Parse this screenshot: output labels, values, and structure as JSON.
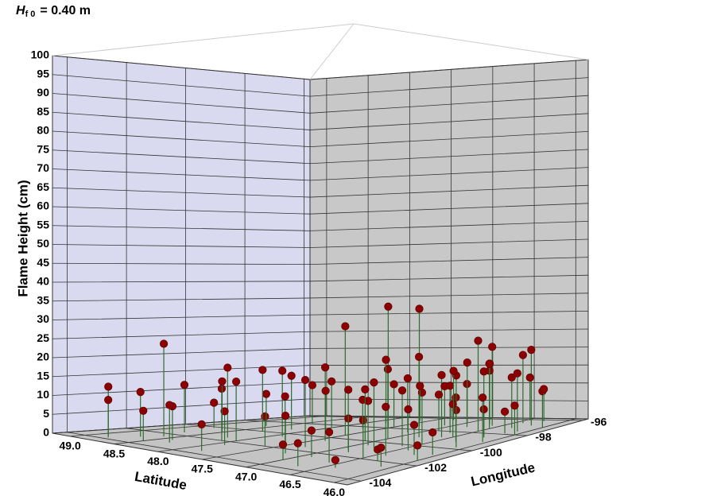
{
  "chart_data": {
    "type": "scatter3d",
    "title": "H",
    "title_subscript": "f 0",
    "title_rest": "= 0.40 m",
    "y_label": "Flame Height (cm)",
    "x_label": "Latitude",
    "z_label": "Longitude",
    "xlim": [
      49.2,
      45.85
    ],
    "zlim": [
      -104.5,
      -95.8
    ],
    "ylim": [
      0,
      100
    ],
    "xticks": [
      {
        "value": 49.0,
        "label": "49.0"
      },
      48.5,
      {
        "value": 48.0,
        "label": "48.0"
      },
      47.5,
      {
        "value": 47.0,
        "label": "47.0"
      },
      46.5,
      {
        "value": 46.0,
        "label": "46.0"
      }
    ],
    "zticks": [
      -104,
      -102,
      -100,
      -98,
      -96
    ],
    "yticks": [
      0,
      5,
      10,
      15,
      20,
      25,
      30,
      35,
      40,
      45,
      50,
      55,
      60,
      65,
      70,
      75,
      80,
      85,
      90,
      95,
      100
    ],
    "grid": true,
    "color": "#8b0000",
    "stem_color": "#2e6b2e",
    "latitude": [
      48.9,
      48.8,
      48.6,
      48.7,
      48.5,
      48.4,
      48.3,
      48.2,
      48.1,
      48.0,
      47.9,
      47.8,
      47.9,
      47.7,
      47.6,
      47.5,
      47.4,
      47.3,
      47.2,
      47.5,
      47.3,
      47.1,
      47.0,
      46.9,
      46.8,
      46.9,
      47.0,
      46.7,
      46.6,
      46.5,
      46.4,
      46.3,
      46.8,
      46.6,
      46.5,
      46.4,
      46.2,
      46.3,
      46.2,
      46.1,
      46.2,
      46.1,
      46.05,
      46.0,
      46.1,
      46.3,
      46.4,
      46.5,
      46.6,
      46.7,
      46.8,
      47.0,
      47.2,
      47.1,
      46.9,
      46.7,
      46.5,
      46.3,
      46.15,
      46.0,
      46.0,
      46.05,
      46.25,
      46.45,
      46.9,
      47.3,
      47.6,
      47.5,
      47.8,
      48.0,
      48.2,
      48.4,
      48.6,
      48.8,
      48.5,
      48.7,
      48.3,
      47.9,
      47.7,
      46.6,
      46.4,
      46.7,
      46.9,
      47.1,
      46.5
    ],
    "longitude": [
      -103.5,
      -103.8,
      -102.5,
      -103,
      -103.5,
      -102.8,
      -103.2,
      -101.5,
      -102,
      -101.8,
      -102.5,
      -103.6,
      -100.5,
      -101,
      -102,
      -99.5,
      -100.5,
      -101.5,
      -102.5,
      -98,
      -97.5,
      -98.5,
      -99.5,
      -100.5,
      -101.5,
      -102.5,
      -103.2,
      -103.6,
      -102.8,
      -101.9,
      -103.2,
      -102,
      -99,
      -98.8,
      -99.8,
      -100.6,
      -101,
      -99.2,
      -98.5,
      -97.6,
      -96.8,
      -99.8,
      -100.8,
      -101.5,
      -102.5,
      -97.2,
      -96.5,
      -97.8,
      -97,
      -96.8,
      -97.3,
      -96.7,
      -96.5,
      -97.2,
      -98,
      -98.2,
      -98.7,
      -98.2,
      -97.9,
      -97,
      -98,
      -99,
      -96.2,
      -96.1,
      -96.2,
      -96.3,
      -96.6,
      -97.8,
      -97.2,
      -98.5,
      -99.3,
      -98,
      -99,
      -100.2,
      -100.8,
      -101.5,
      -100,
      -99,
      -98.3,
      -100.2,
      -101.4,
      -100.9,
      -101.2,
      -100,
      -97.4
    ],
    "values": [
      13,
      10,
      25,
      12,
      8,
      9,
      10,
      19,
      14,
      16,
      9,
      7,
      18,
      12,
      8,
      30,
      20,
      18,
      10,
      34,
      33,
      15,
      19,
      12,
      9,
      7,
      4,
      6,
      8,
      10,
      2,
      3,
      22,
      17,
      14,
      11,
      8,
      12,
      18,
      16,
      21,
      10,
      6,
      4,
      5,
      14,
      19,
      25,
      22,
      15,
      12,
      17,
      13,
      11,
      10,
      13,
      9,
      7,
      6,
      10,
      8,
      12,
      9,
      12,
      16,
      14,
      10,
      12,
      18,
      13,
      15,
      11,
      9,
      7,
      14,
      13,
      17,
      11,
      8,
      15,
      13,
      18,
      16,
      14,
      18
    ]
  }
}
